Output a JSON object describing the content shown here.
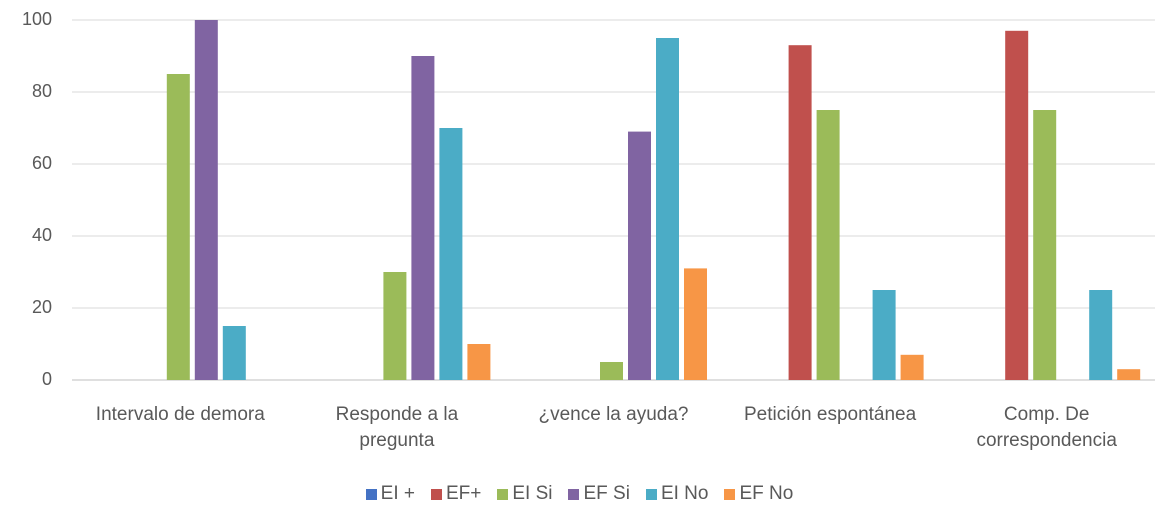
{
  "chart_data": {
    "type": "bar",
    "categories": [
      "Intervalo de demora",
      "Responde a la pregunta",
      "¿vence la ayuda?",
      "Petición espontánea",
      "Comp. De correspondencia"
    ],
    "series": [
      {
        "name": "EI +",
        "color": "#4472c4",
        "values": [
          0,
          0,
          0,
          0,
          0
        ]
      },
      {
        "name": "EF+",
        "color": "#c0504d",
        "values": [
          0,
          0,
          0,
          93,
          97
        ]
      },
      {
        "name": "EI Si",
        "color": "#9bbb59",
        "values": [
          85,
          30,
          5,
          75,
          75
        ]
      },
      {
        "name": "EF Si",
        "color": "#8064a2",
        "values": [
          100,
          90,
          69,
          0,
          0
        ]
      },
      {
        "name": "EI No",
        "color": "#4bacc6",
        "values": [
          15,
          70,
          95,
          25,
          25
        ]
      },
      {
        "name": "EF No",
        "color": "#f79646",
        "values": [
          0,
          10,
          31,
          7,
          3
        ]
      }
    ],
    "ylim": [
      0,
      100
    ],
    "yticks": [
      0,
      20,
      40,
      60,
      80,
      100
    ],
    "grid": true,
    "legend": "bottom"
  }
}
